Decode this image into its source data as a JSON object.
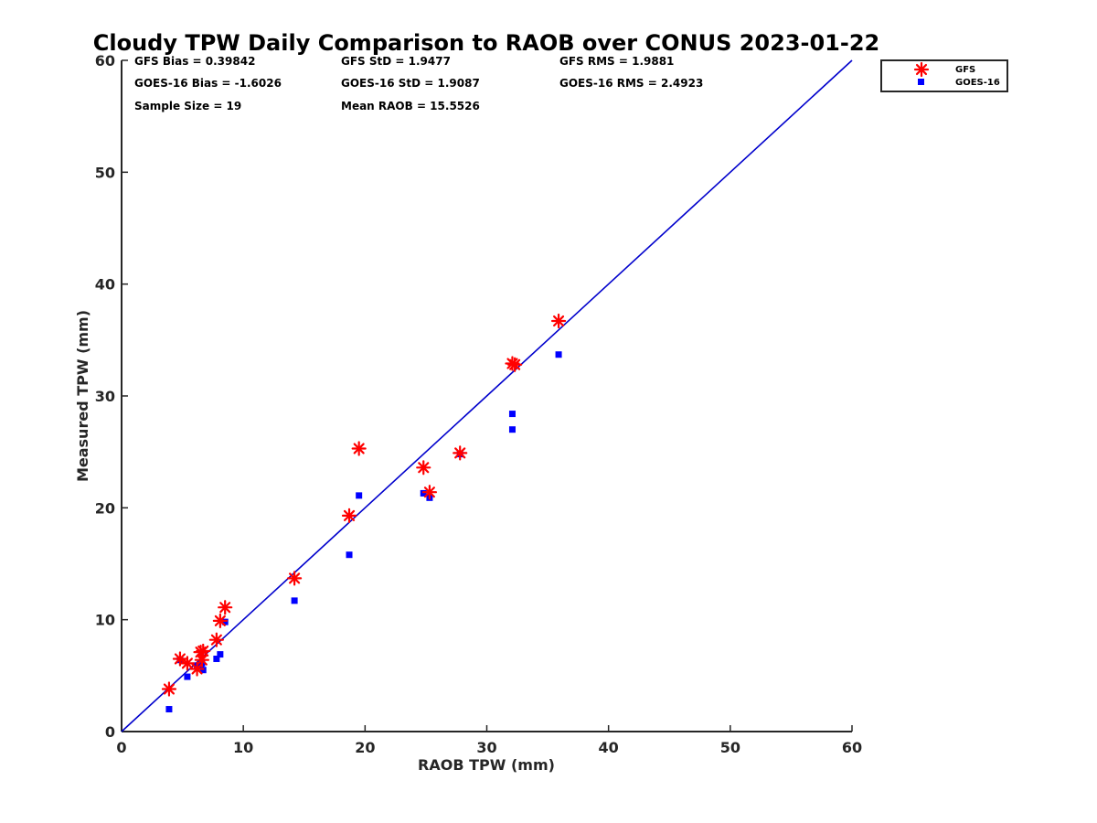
{
  "chart_data": {
    "type": "scatter",
    "title": "Cloudy TPW Daily Comparison to RAOB over CONUS 2023-01-22",
    "xlabel": "RAOB TPW (mm)",
    "ylabel": "Measured TPW (mm)",
    "xlim": [
      0,
      60
    ],
    "ylim": [
      0,
      60
    ],
    "xticks": [
      "0",
      "10",
      "20",
      "30",
      "40",
      "50",
      "60"
    ],
    "yticks": [
      "0",
      "10",
      "20",
      "30",
      "40",
      "50",
      "60"
    ],
    "grid": false,
    "legend_position": "top-right, outside plot",
    "stats": [
      [
        "GFS Bias = 0.39842",
        "GFS StD = 1.9477",
        "GFS RMS = 1.9881"
      ],
      [
        "GOES-16 Bias = -1.6026",
        "GOES-16 StD = 1.9087",
        "GOES-16 RMS = 2.4923"
      ],
      [
        "Sample Size = 19",
        "Mean RAOB = 15.5526",
        ""
      ]
    ],
    "reference_line": {
      "from": [
        0,
        0
      ],
      "to": [
        60,
        60
      ],
      "color": "#0000cc"
    },
    "series": [
      {
        "name": "GFS",
        "marker": "asterisk",
        "color": "#ff0000",
        "x": [
          3.9,
          4.8,
          5.4,
          6.2,
          6.5,
          6.7,
          6.6,
          7.8,
          8.1,
          8.5,
          14.2,
          18.7,
          19.5,
          24.8,
          25.3,
          27.8,
          32.1,
          32.3,
          35.9
        ],
        "y": [
          3.8,
          6.5,
          6.1,
          5.6,
          7.1,
          7.2,
          6.4,
          8.2,
          9.9,
          11.1,
          13.7,
          19.3,
          25.3,
          23.6,
          21.4,
          24.9,
          32.9,
          32.8,
          36.7
        ]
      },
      {
        "name": "GOES-16",
        "marker": "square",
        "color": "#0000ff",
        "x": [
          3.9,
          4.8,
          5.4,
          6.2,
          6.5,
          6.7,
          6.6,
          7.8,
          8.1,
          8.5,
          14.2,
          18.7,
          19.5,
          24.8,
          25.3,
          27.8,
          32.1,
          32.1,
          35.9
        ],
        "y": [
          2.0,
          6.4,
          4.9,
          5.9,
          5.9,
          5.5,
          6.1,
          6.5,
          6.9,
          9.8,
          11.7,
          15.8,
          21.1,
          21.3,
          20.9,
          24.8,
          28.4,
          27.0,
          33.7
        ]
      }
    ]
  }
}
